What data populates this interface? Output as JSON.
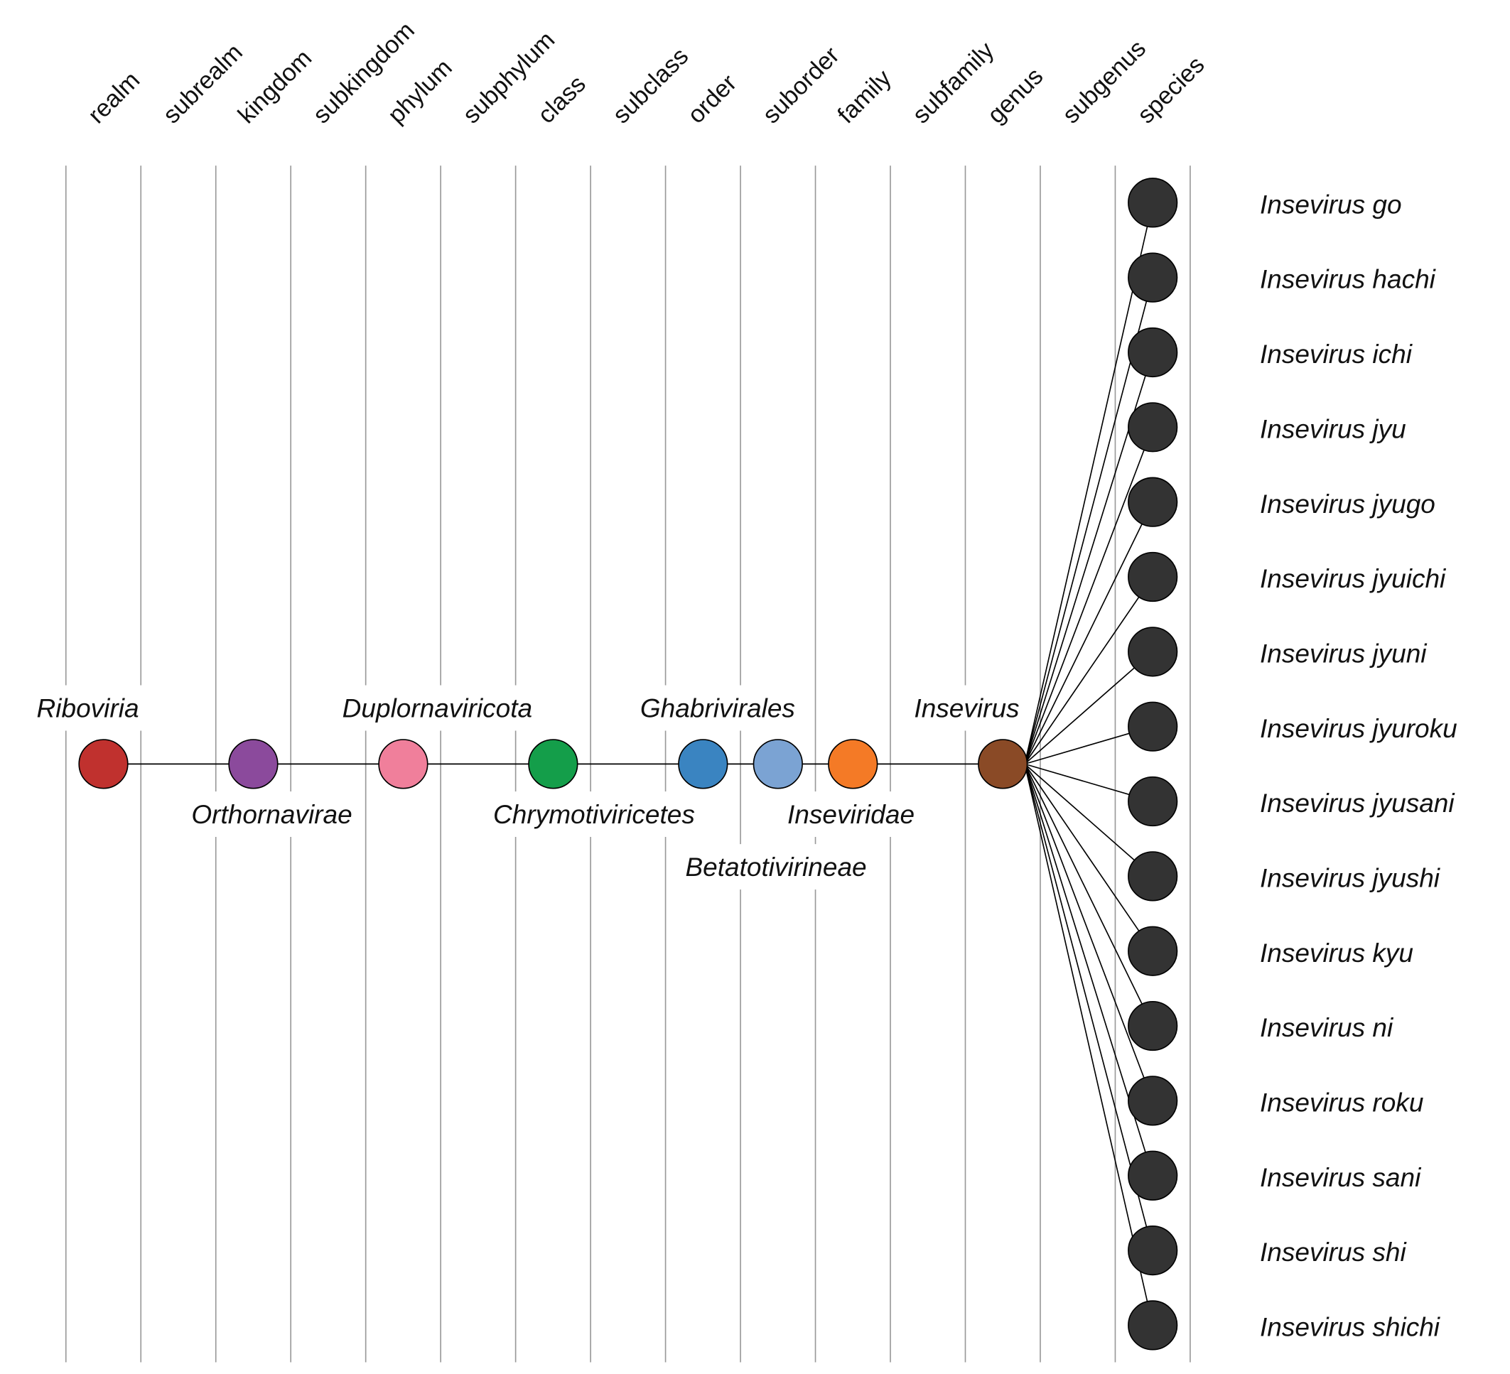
{
  "ranks": [
    "realm",
    "subrealm",
    "kingdom",
    "subkingdom",
    "phylum",
    "subphylum",
    "class",
    "subclass",
    "order",
    "suborder",
    "family",
    "subfamily",
    "genus",
    "subgenus",
    "species"
  ],
  "lineage": [
    {
      "name": "Riboviria",
      "rank": "realm",
      "color": "#c0312e",
      "label_pos": "above"
    },
    {
      "name": "Orthornavirae",
      "rank": "kingdom",
      "color": "#8b4a9c",
      "label_pos": "below"
    },
    {
      "name": "Duplornaviricota",
      "rank": "phylum",
      "color": "#f07f9b",
      "label_pos": "above"
    },
    {
      "name": "Chrymotiviricetes",
      "rank": "class",
      "color": "#149e4a",
      "label_pos": "below"
    },
    {
      "name": "Ghabrivirales",
      "rank": "order",
      "color": "#3a84c1",
      "label_pos": "above"
    },
    {
      "name": "Betatotivirineae",
      "rank": "suborder",
      "color": "#7ba3d3",
      "label_pos": "below"
    },
    {
      "name": "Inseviridae",
      "rank": "family",
      "color": "#f47a26",
      "label_pos": "below"
    },
    {
      "name": "Insevirus",
      "rank": "genus",
      "color": "#8a4a26",
      "label_pos": "above"
    }
  ],
  "species_color": "#333333",
  "species": [
    "Insevirus go",
    "Insevirus hachi",
    "Insevirus ichi",
    "Insevirus jyu",
    "Insevirus jyugo",
    "Insevirus jyuichi",
    "Insevirus jyuni",
    "Insevirus jyuroku",
    "Insevirus jyusani",
    "Insevirus jyushi",
    "Insevirus kyu",
    "Insevirus ni",
    "Insevirus roku",
    "Insevirus sani",
    "Insevirus shi",
    "Insevirus shichi"
  ]
}
